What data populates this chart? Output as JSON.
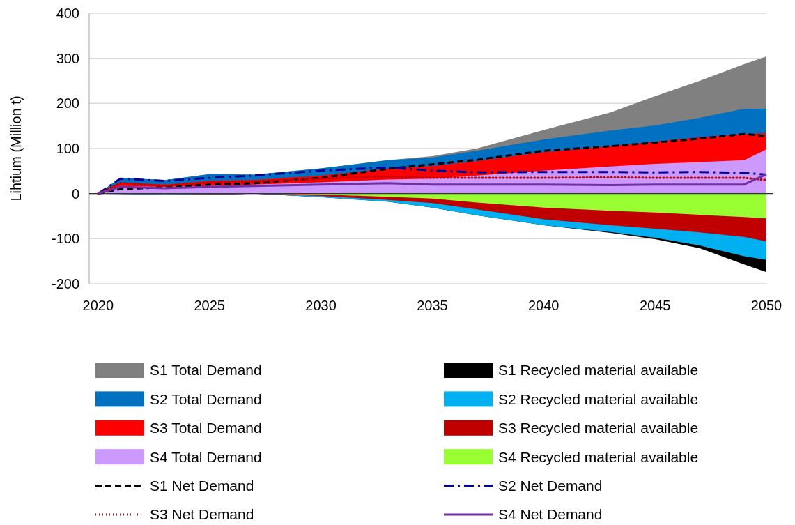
{
  "chart_data": {
    "type": "area",
    "ylabel": "Lihtium (Million t)",
    "x": [
      2020,
      2021,
      2023,
      2025,
      2027,
      2030,
      2033,
      2035,
      2037,
      2040,
      2043,
      2045,
      2047,
      2049,
      2050
    ],
    "xlim": [
      2019.6,
      2050
    ],
    "xticks": [
      2020,
      2025,
      2030,
      2035,
      2040,
      2045,
      2050
    ],
    "ylim": [
      -200,
      400
    ],
    "yticks": [
      -200,
      -100,
      0,
      100,
      200,
      300,
      400
    ],
    "grid": "y",
    "legend": "bottom",
    "series": [
      {
        "name": "S1 Total Demand",
        "color": "#808080",
        "values": [
          0,
          35,
          30,
          43,
          42,
          56,
          74,
          83,
          100,
          141,
          180,
          216,
          250,
          287,
          304
        ]
      },
      {
        "name": "S1 Recycled material available",
        "color": "#000000",
        "values": [
          0,
          -1,
          -2,
          -3,
          0,
          -8,
          -18,
          -31,
          -48,
          -70,
          -87,
          -101,
          -121,
          -157,
          -174
        ]
      },
      {
        "name": "S2 Total Demand",
        "color": "#0070c0",
        "values": [
          0,
          35,
          30,
          43,
          42,
          56,
          74,
          80,
          95,
          120,
          140,
          151,
          168,
          188,
          188
        ]
      },
      {
        "name": "S2 Recycled material available",
        "color": "#00b0f0",
        "values": [
          0,
          -1,
          -2,
          -3,
          0,
          -8,
          -18,
          -31,
          -48,
          -70,
          -85,
          -98,
          -115,
          -139,
          -147
        ]
      },
      {
        "name": "S3 Total Demand",
        "color": "#ff0000",
        "values": [
          0,
          25,
          20,
          28,
          30,
          40,
          55,
          61,
          72,
          92,
          105,
          115,
          125,
          132,
          134
        ]
      },
      {
        "name": "S3 Recycled material available",
        "color": "#c00000",
        "values": [
          0,
          0,
          -1,
          -2,
          0,
          -5,
          -14,
          -21,
          -35,
          -57,
          -70,
          -78,
          -86,
          -96,
          -106
        ]
      },
      {
        "name": "S4 Total Demand",
        "color": "#cc99ff",
        "values": [
          0,
          17,
          15,
          17,
          20,
          25,
          31,
          33,
          40,
          51,
          60,
          66,
          70,
          74,
          98
        ]
      },
      {
        "name": "S4 Recycled material available",
        "color": "#99ff33",
        "values": [
          0,
          0,
          -1,
          -1,
          0,
          -2,
          -7,
          -11,
          -20,
          -31,
          -38,
          -42,
          -47,
          -52,
          -55
        ]
      },
      {
        "name": "S1 Net Demand",
        "type": "line",
        "color": "#000000",
        "line_style": "dashed",
        "values": [
          0,
          10,
          14,
          20,
          23,
          35,
          55,
          65,
          75,
          95,
          105,
          113,
          122,
          132,
          128
        ]
      },
      {
        "name": "S2 Net Demand",
        "type": "line",
        "color": "#000099",
        "line_style": "dashdot",
        "values": [
          0,
          33,
          28,
          35,
          40,
          51,
          58,
          51,
          47,
          48,
          48,
          47,
          48,
          46,
          42
        ]
      },
      {
        "name": "S3 Net Demand",
        "type": "line",
        "color": "#c00000",
        "line_style": "dotted",
        "values": [
          0,
          23,
          17,
          25,
          27,
          33,
          38,
          35,
          35,
          35,
          36,
          35,
          35,
          35,
          30
        ]
      },
      {
        "name": "S4 Net Demand",
        "type": "line",
        "color": "#7030a0",
        "line_style": "solid",
        "values": [
          0,
          15,
          12,
          15,
          17,
          20,
          23,
          20,
          20,
          20,
          19,
          20,
          20,
          20,
          43
        ]
      }
    ]
  }
}
